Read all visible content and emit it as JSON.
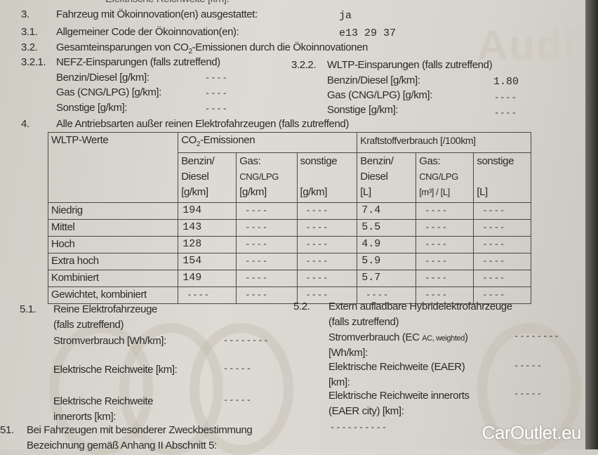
{
  "top_partial": {
    "label": "Elektrische Reichweite [km]:",
    "value": "------"
  },
  "items": {
    "i3": {
      "num": "3.",
      "label": "Fahrzeug mit Ökoinnovation(en) ausgestattet:",
      "value": "ja"
    },
    "i3_1": {
      "num": "3.1.",
      "label": "Allgemeiner Code der Ökoinnovation(en):",
      "value": "e13 29 37"
    },
    "i3_2": {
      "num": "3.2.",
      "label_pre": "Gesamteinsparungen von CO",
      "label_sub": "2",
      "label_post": "-Emissionen durch die Ökoinnovationen"
    },
    "i3_2_1": {
      "num": "3.2.1.",
      "label": "NEFZ-Einsparungen (falls zutreffend)",
      "rows": [
        {
          "label": "Benzin/Diesel [g/km]:",
          "value": "----"
        },
        {
          "label": "Gas (CNG/LPG) [g/km]:",
          "value": "----"
        },
        {
          "label": "Sonstige [g/km]:",
          "value": "----"
        }
      ]
    },
    "i3_2_2": {
      "num": "3.2.2.",
      "label": "WLTP-Einsparungen (falls zutreffend)",
      "rows": [
        {
          "label": "Benzin/Diesel [g/km]:",
          "value": "1.80"
        },
        {
          "label": "Gas (CNG/LPG) [g/km]:",
          "value": "----"
        },
        {
          "label": "Sonstige [g/km]:",
          "value": "----"
        }
      ]
    },
    "i4": {
      "num": "4.",
      "label": "Alle Antriebsarten außer reinen Elektrofahrzeugen (falls zutreffend)"
    }
  },
  "table": {
    "corner": "WLTP-Werte",
    "group_co2_pre": "CO",
    "group_co2_sub": "2",
    "group_co2_post": "-Emissionen",
    "group_fuel": "Kraftstoffverbrauch [/100km]",
    "columns": [
      {
        "l1": "Benzin/",
        "l2": "Diesel",
        "l3": "[g/km]"
      },
      {
        "l1": "Gas:",
        "l2": "CNG/LPG",
        "l3": "[g/km]"
      },
      {
        "l1": "sonstige",
        "l2": "",
        "l3": "[g/km]"
      },
      {
        "l1": "Benzin/",
        "l2": "Diesel",
        "l3": "[L]"
      },
      {
        "l1": "Gas:",
        "l2": "CNG/LPG",
        "l3": "[m³] / [L]"
      },
      {
        "l1": "sonstige",
        "l2": "",
        "l3": "[L]"
      }
    ],
    "rows": [
      {
        "label": "Niedrig",
        "cells": [
          "194",
          "----",
          "----",
          "7.4",
          "----",
          "----"
        ]
      },
      {
        "label": "Mittel",
        "cells": [
          "143",
          "----",
          "----",
          "5.5",
          "----",
          "----"
        ]
      },
      {
        "label": "Hoch",
        "cells": [
          "128",
          "----",
          "----",
          "4.9",
          "----",
          "----"
        ]
      },
      {
        "label": "Extra hoch",
        "cells": [
          "154",
          "----",
          "----",
          "5.9",
          "----",
          "----"
        ]
      },
      {
        "label": "Kombiniert",
        "cells": [
          "149",
          "----",
          "----",
          "5.7",
          "----",
          "----"
        ]
      },
      {
        "label": "Gewichtet, kombiniert",
        "cells": [
          "----",
          "----",
          "----",
          "----",
          "----",
          "----"
        ]
      }
    ]
  },
  "s5_1": {
    "num": "5.1.",
    "l1": "Reine Elektrofahrzeuge",
    "l2": "(falls zutreffend)",
    "strom": {
      "label": "Stromverbrauch [Wh/km]:",
      "value": "--------"
    },
    "reich": {
      "label": "Elektrische Reichweite [km]:",
      "value": "-----"
    },
    "reich_city": {
      "l1": "Elektrische Reichweite",
      "l2": "innerorts [km]:",
      "value": "-----"
    }
  },
  "s5_2": {
    "num": "5.2.",
    "l1": "Extern aufladbare Hybridelektrofahrzeuge",
    "l2": "(falls zutreffend)",
    "strom": {
      "l1_pre": "Stromverbrauch (EC",
      "l1_small": "AC, weighted",
      "l1_post": ")",
      "l2": "[Wh/km]:",
      "value": "--------"
    },
    "reich": {
      "l1": "Elektrische Reichweite (EAER)",
      "l2": "[km]:",
      "value": "-----"
    },
    "reich_city": {
      "l1": "Elektrische Reichweite innerorts",
      "l2": "(EAER city) [km]:",
      "value": "-----"
    }
  },
  "s51": {
    "num": "51.",
    "label": "Bei Fahrzeugen mit besonderer Zweckbestimmung",
    "value": "----------",
    "partial": "Bezeichnung gemäß Anhang II Abschnitt 5:"
  },
  "watermark": "CarOutlet.eu",
  "background_logo": "Audi"
}
